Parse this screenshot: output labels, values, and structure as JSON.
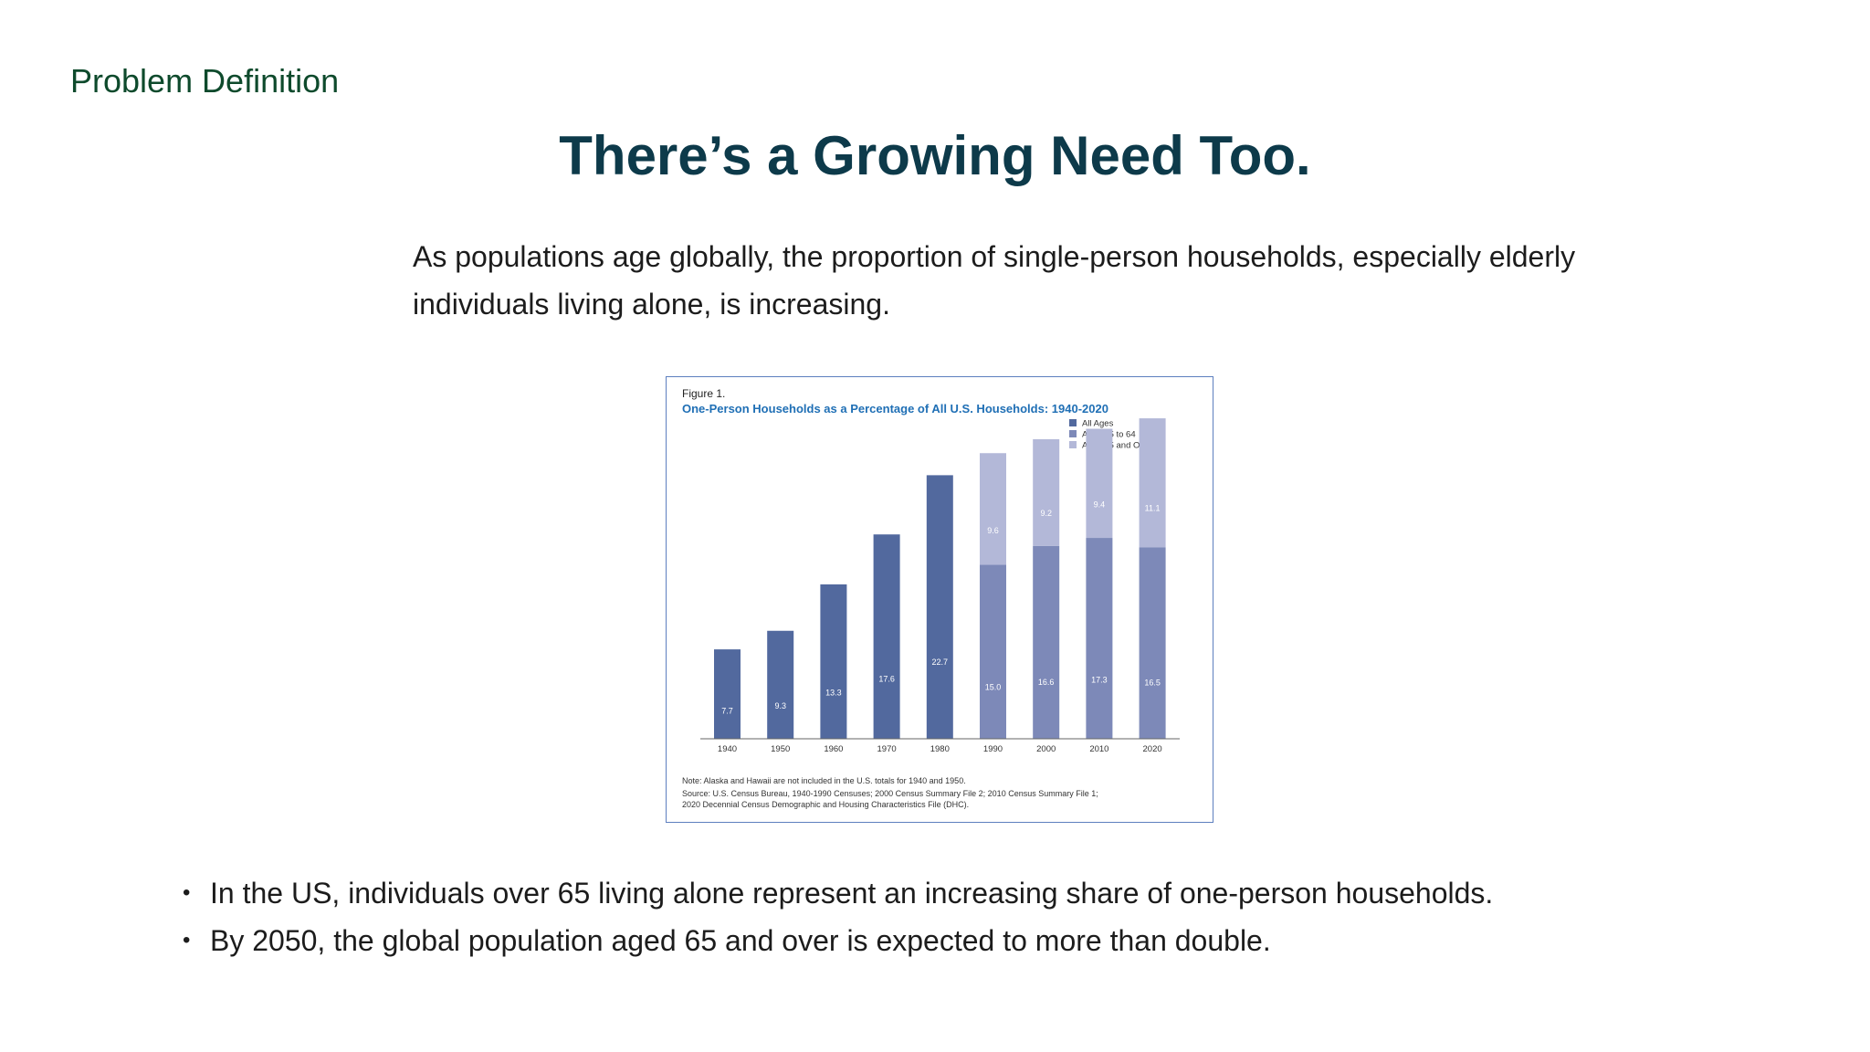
{
  "slide": {
    "section_label": "Problem Definition",
    "title": "There’s a Growing Need Too.",
    "intro": "As populations age globally, the proportion of single-person households, especially elderly individuals living alone, is increasing.",
    "bullets": [
      "In the US, individuals over 65 living alone represent an increasing share of one-person households.",
      "By 2050, the global population aged 65 and over is expected to more than double."
    ]
  },
  "chart_data": {
    "type": "bar",
    "stacked": true,
    "figure_label": "Figure 1.",
    "title": "One-Person Households as a Percentage of All U.S. Households: 1940-2020",
    "categories": [
      "1940",
      "1950",
      "1960",
      "1970",
      "1980",
      "1990",
      "2000",
      "2010",
      "2020"
    ],
    "series": [
      {
        "name": "All Ages",
        "color": "#52699e",
        "values": [
          7.7,
          9.3,
          13.3,
          17.6,
          22.7,
          null,
          null,
          null,
          null
        ]
      },
      {
        "name": "Ages 15 to 64",
        "color": "#7d89b8",
        "values": [
          null,
          null,
          null,
          null,
          null,
          15.0,
          16.6,
          17.3,
          16.5
        ]
      },
      {
        "name": "Ages 65 and Older",
        "color": "#b3b8d8",
        "values": [
          null,
          null,
          null,
          null,
          null,
          9.6,
          9.2,
          9.4,
          11.1
        ]
      }
    ],
    "data_labels": [
      [
        "7.7",
        "9.3",
        "13.3",
        "17.6",
        "22.7",
        null,
        null,
        null,
        null
      ],
      [
        null,
        null,
        null,
        null,
        null,
        "15.0",
        "16.6",
        "17.3",
        "16.5"
      ],
      [
        null,
        null,
        null,
        null,
        null,
        "9.6",
        "9.2",
        "9.4",
        "11.1"
      ]
    ],
    "ylim": [
      0,
      28
    ],
    "grid": false,
    "legend_position": "top-right",
    "note": "Note: Alaska and Hawaii are not included in the U.S. totals for 1940 and 1950.",
    "source_line1": "Source: U.S. Census Bureau, 1940-1990 Censuses; 2000 Census Summary File 2; 2010 Census Summary File 1;",
    "source_line2": "2020 Decennial Census Demographic and Housing Characteristics File (DHC)."
  }
}
